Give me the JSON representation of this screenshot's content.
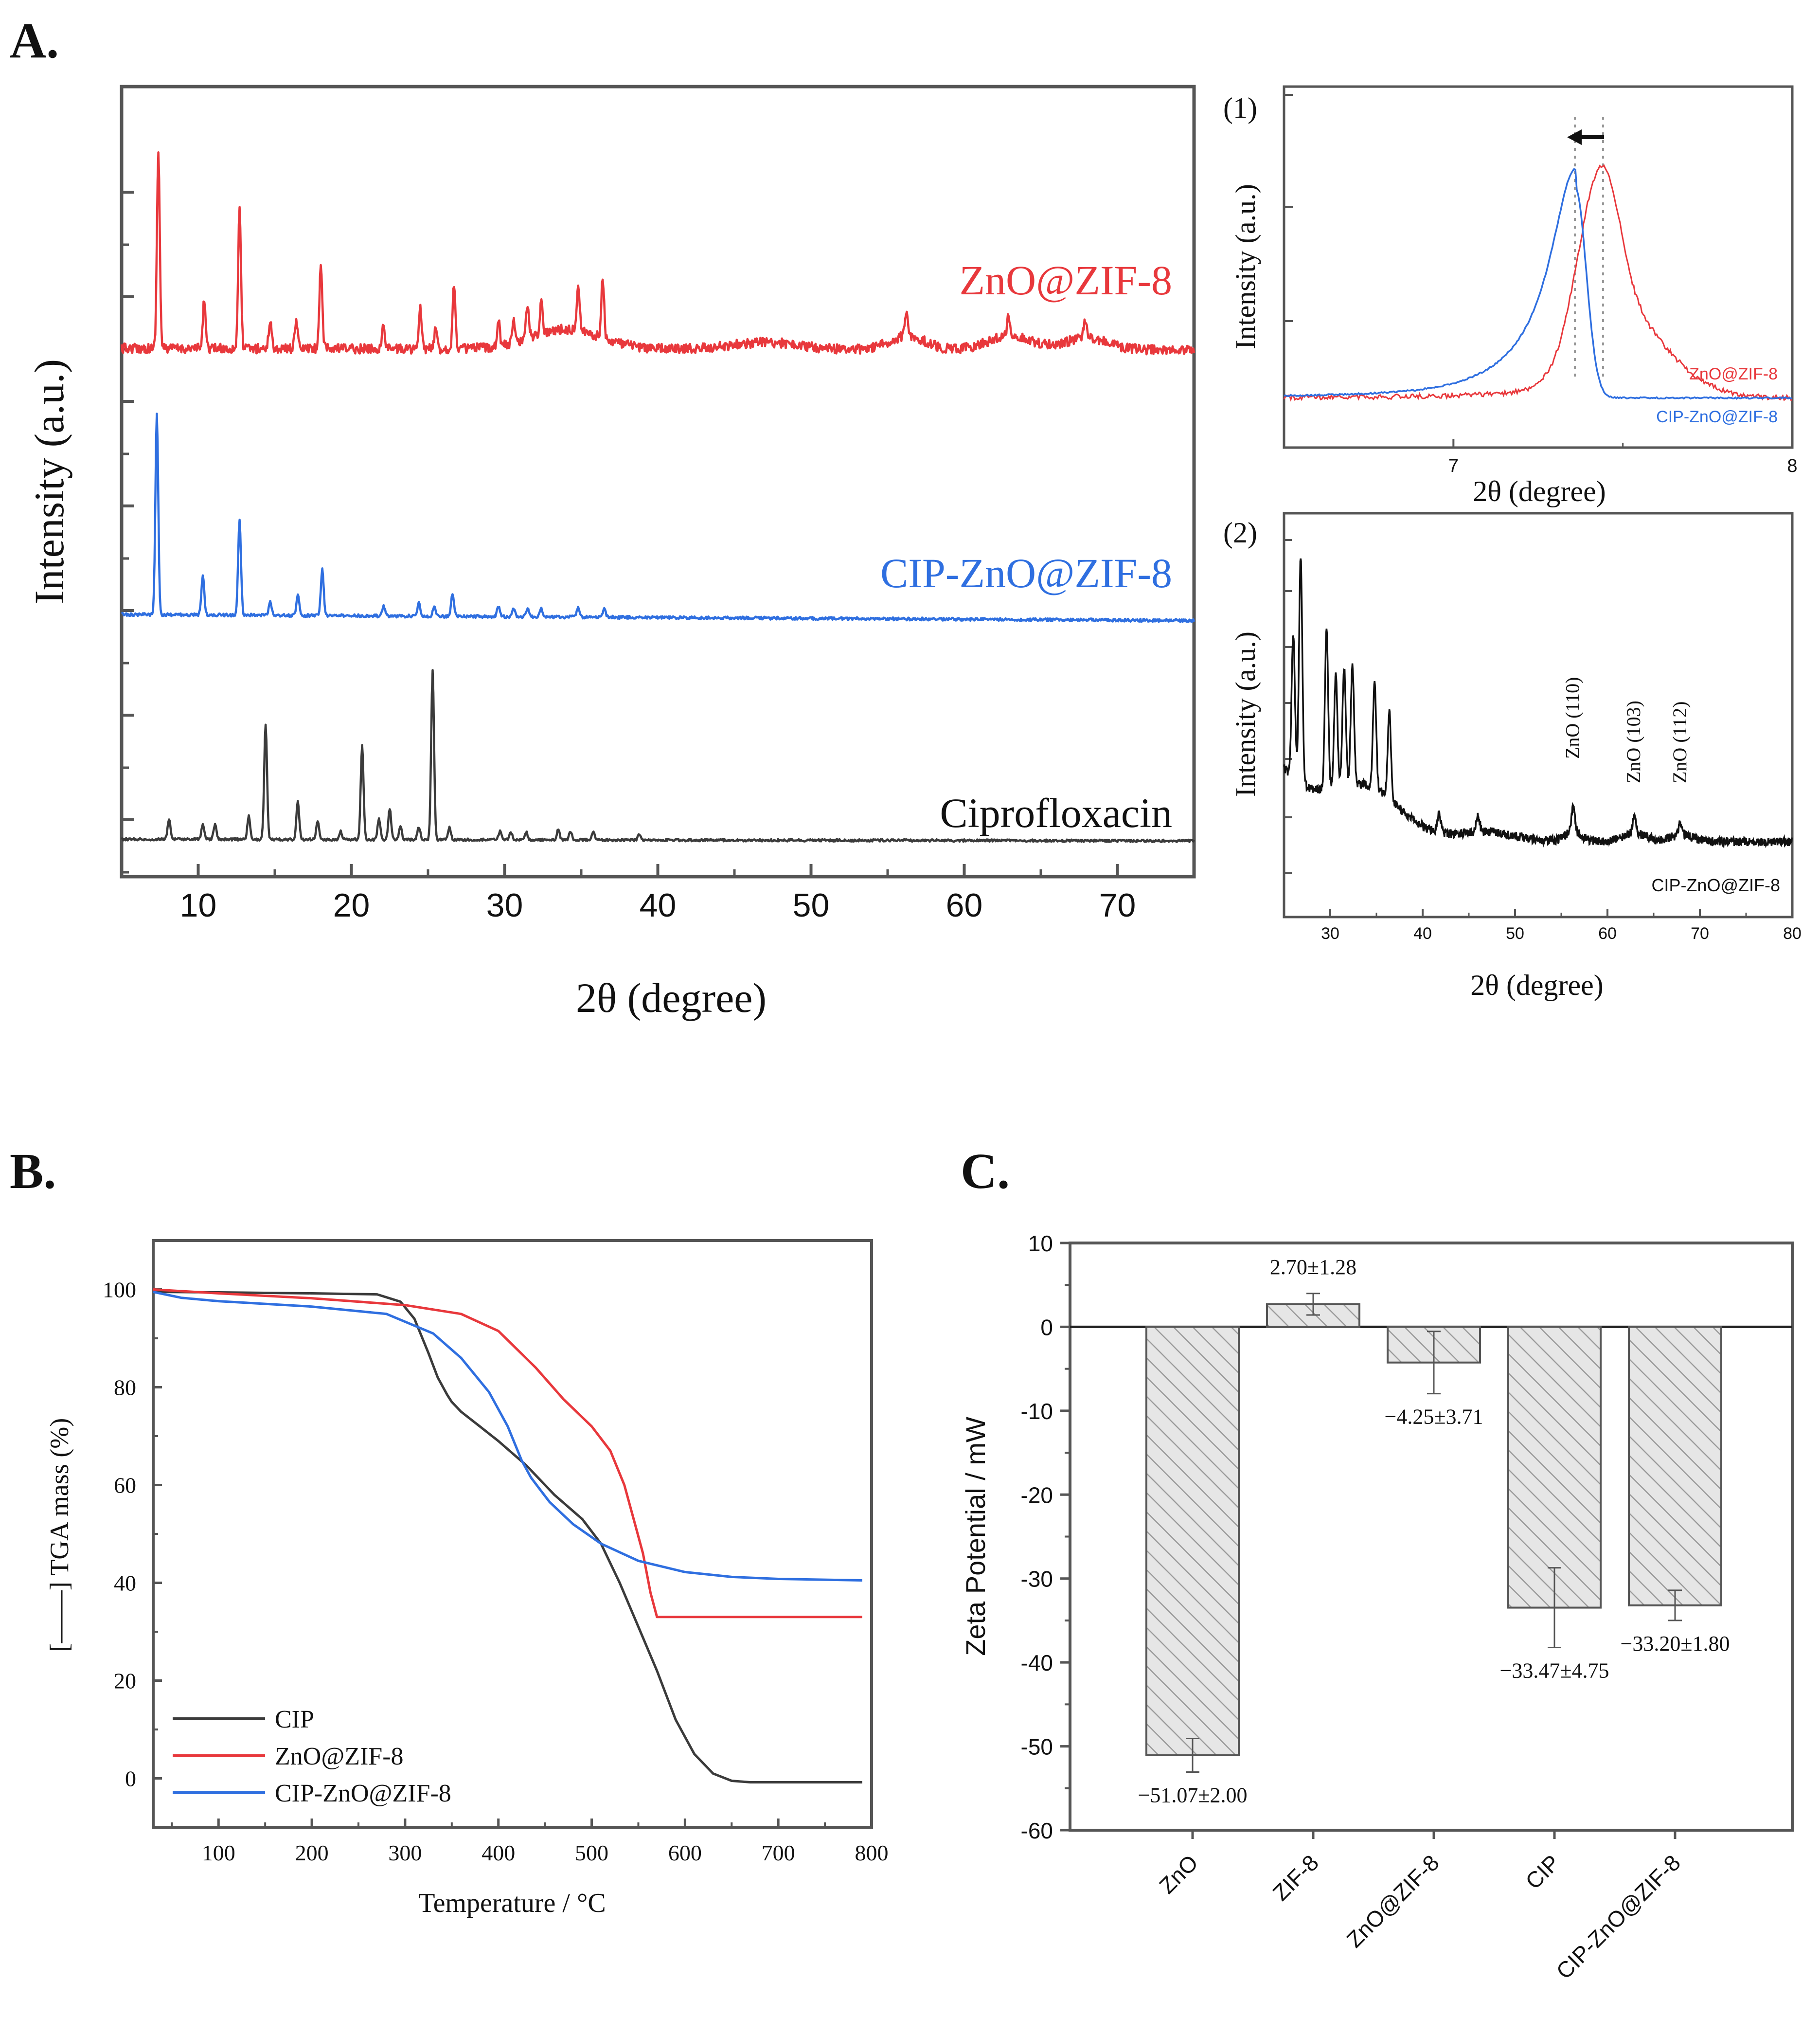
{
  "panels": {
    "A": "A.",
    "B": "B.",
    "C": "C."
  },
  "colors": {
    "red": "#e8383c",
    "blue": "#2f6fe0",
    "black": "#3b3b3b",
    "axis": "#555555"
  },
  "chart_data": [
    {
      "id": "A_main",
      "type": "line",
      "xlabel": "2θ (degree)",
      "ylabel": "Intensity (a.u.)",
      "xlim": [
        5,
        75
      ],
      "xticks": [
        10,
        20,
        30,
        40,
        50,
        60,
        70
      ],
      "series": [
        {
          "name": "ZnO@ZIF-8",
          "color": "#e8383c",
          "baseline": 0.55,
          "peaks": [
            [
              7.4,
              1.0
            ],
            [
              10.4,
              0.25
            ],
            [
              12.7,
              0.7
            ],
            [
              14.7,
              0.15
            ],
            [
              16.4,
              0.15
            ],
            [
              18.0,
              0.43
            ],
            [
              22.1,
              0.12
            ],
            [
              24.5,
              0.2
            ],
            [
              25.5,
              0.1
            ],
            [
              26.7,
              0.33
            ],
            [
              29.6,
              0.13
            ],
            [
              30.6,
              0.11
            ],
            [
              31.5,
              0.18
            ],
            [
              32.4,
              0.17
            ],
            [
              34.8,
              0.25
            ],
            [
              36.4,
              0.3
            ],
            [
              56.2,
              0.13
            ],
            [
              62.9,
              0.11
            ],
            [
              67.9,
              0.1
            ]
          ]
        },
        {
          "name": "CIP-ZnO@ZIF-8",
          "color": "#2f6fe0",
          "baseline": 0.3,
          "peaks": [
            [
              7.3,
              1.0
            ],
            [
              10.3,
              0.2
            ],
            [
              12.7,
              0.47
            ],
            [
              14.7,
              0.07
            ],
            [
              16.5,
              0.1
            ],
            [
              18.1,
              0.23
            ],
            [
              22.1,
              0.05
            ],
            [
              24.4,
              0.07
            ],
            [
              25.4,
              0.05
            ],
            [
              26.6,
              0.11
            ],
            [
              29.6,
              0.05
            ],
            [
              30.6,
              0.04
            ],
            [
              31.5,
              0.04
            ],
            [
              32.4,
              0.04
            ],
            [
              34.8,
              0.05
            ],
            [
              36.5,
              0.04
            ]
          ]
        },
        {
          "name": "Ciprofloxacin",
          "color": "#3b3b3b",
          "baseline": 0.0,
          "peaks": [
            [
              8.1,
              0.1
            ],
            [
              10.3,
              0.07
            ],
            [
              11.1,
              0.07
            ],
            [
              13.3,
              0.11
            ],
            [
              14.4,
              0.55
            ],
            [
              16.5,
              0.18
            ],
            [
              17.8,
              0.09
            ],
            [
              19.3,
              0.04
            ],
            [
              20.7,
              0.45
            ],
            [
              21.8,
              0.1
            ],
            [
              22.5,
              0.15
            ],
            [
              23.2,
              0.06
            ],
            [
              24.4,
              0.06
            ],
            [
              25.3,
              0.81
            ],
            [
              26.4,
              0.06
            ],
            [
              29.7,
              0.04
            ],
            [
              30.4,
              0.04
            ],
            [
              31.4,
              0.04
            ],
            [
              33.5,
              0.05
            ],
            [
              34.3,
              0.04
            ],
            [
              35.8,
              0.04
            ],
            [
              38.8,
              0.03
            ]
          ]
        }
      ]
    },
    {
      "id": "A_inset1",
      "type": "line",
      "label": "(1)",
      "xlabel": "2θ (degree)",
      "ylabel": "Intensity (a.u.)",
      "xlim": [
        6.5,
        8
      ],
      "xticks": [
        7,
        8
      ],
      "series": [
        {
          "name": "ZnO@ZIF-8",
          "color": "#e8383c",
          "peak_x": 7.44
        },
        {
          "name": "CIP-ZnO@ZIF-8",
          "color": "#2f6fe0",
          "peak_x": 7.36
        }
      ]
    },
    {
      "id": "A_inset2",
      "type": "line",
      "label": "(2)",
      "xlabel": "2θ (degree)",
      "ylabel": "Intensity (a.u.)",
      "xlim": [
        25,
        80
      ],
      "xticks": [
        30,
        40,
        50,
        60,
        70,
        80
      ],
      "annotations": [
        {
          "x": 56.3,
          "text": "ZnO (110)"
        },
        {
          "x": 62.9,
          "text": "ZnO (103)"
        },
        {
          "x": 67.9,
          "text": "ZnO (112)"
        }
      ],
      "legend": "CIP-ZnO@ZIF-8"
    },
    {
      "id": "B",
      "type": "line",
      "xlabel": "Temperature / °C",
      "ylabel": "[——] TGA mass (%)",
      "xlim": [
        30,
        800
      ],
      "ylim": [
        -10,
        110
      ],
      "xticks": [
        100,
        200,
        300,
        400,
        500,
        600,
        700,
        800
      ],
      "yticks": [
        0,
        20,
        40,
        60,
        80,
        100
      ],
      "series": [
        {
          "name": "CIP",
          "color": "#3b3b3b",
          "x": [
            30,
            100,
            200,
            270,
            295,
            310,
            325,
            335,
            345,
            350,
            360,
            380,
            400,
            430,
            460,
            490,
            510,
            530,
            550,
            570,
            590,
            610,
            630,
            650,
            670,
            700,
            790
          ],
          "y": [
            99.5,
            99.4,
            99.2,
            99,
            97.5,
            94,
            87,
            82,
            78.5,
            77,
            75,
            72,
            69,
            64,
            58,
            53,
            48,
            40,
            31,
            22,
            12,
            5,
            1,
            -0.5,
            -0.8,
            -0.8,
            -0.8
          ]
        },
        {
          "name": "ZnO@ZIF-8",
          "color": "#e8383c",
          "x": [
            30,
            100,
            200,
            300,
            360,
            400,
            440,
            470,
            500,
            520,
            535,
            545,
            555,
            563,
            570,
            600,
            790
          ],
          "y": [
            100,
            99.2,
            98.2,
            96.8,
            95,
            91.5,
            84,
            77.5,
            72,
            67,
            60,
            53,
            46,
            38,
            33,
            33,
            33
          ]
        },
        {
          "name": "CIP-ZnO@ZIF-8",
          "color": "#2f6fe0",
          "x": [
            30,
            60,
            100,
            200,
            280,
            330,
            360,
            390,
            410,
            425,
            435,
            445,
            455,
            480,
            510,
            550,
            600,
            650,
            700,
            790
          ],
          "y": [
            99.5,
            98.3,
            97.6,
            96.5,
            95,
            91,
            86,
            79,
            72,
            65,
            61.5,
            59,
            56.5,
            52,
            48,
            44.5,
            42.2,
            41.2,
            40.8,
            40.5
          ]
        }
      ]
    },
    {
      "id": "C",
      "type": "bar",
      "ylabel": "Zeta Potential / mW",
      "ylim": [
        -60,
        10
      ],
      "yticks": [
        10,
        0,
        -10,
        -20,
        -30,
        -40,
        -50,
        -60
      ],
      "categories": [
        "ZnO",
        "ZIF-8",
        "ZnO@ZIF-8",
        "CIP",
        "CIP-ZnO@ZIF-8"
      ],
      "values": [
        -51.07,
        2.7,
        -4.25,
        -33.47,
        -33.2
      ],
      "errors": [
        2.0,
        1.28,
        3.71,
        4.75,
        1.8
      ],
      "labels": [
        "−51.07±2.00",
        "2.70±1.28",
        "−4.25±3.71",
        "−33.47±4.75",
        "−33.20±1.80"
      ]
    }
  ]
}
